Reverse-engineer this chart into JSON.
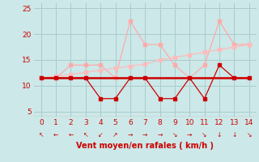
{
  "x": [
    0,
    1,
    2,
    3,
    4,
    5,
    6,
    7,
    8,
    9,
    10,
    11,
    12,
    13,
    14
  ],
  "line_flat": [
    11.5,
    11.5,
    11.5,
    11.5,
    11.5,
    11.5,
    11.5,
    11.5,
    11.5,
    11.5,
    11.5,
    11.5,
    11.5,
    11.5,
    11.5
  ],
  "line_zigzag": [
    11.5,
    11.5,
    11.5,
    11.5,
    7.5,
    7.5,
    11.5,
    11.5,
    7.5,
    7.5,
    11.5,
    7.5,
    14.0,
    11.5,
    11.5
  ],
  "line_upper": [
    11.5,
    11.5,
    14.0,
    14.0,
    14.0,
    11.5,
    22.5,
    18.0,
    18.0,
    14.0,
    11.5,
    14.0,
    22.5,
    18.0,
    18.0
  ],
  "line_trend": [
    11.5,
    11.8,
    12.2,
    12.6,
    13.0,
    13.4,
    13.8,
    14.2,
    15.0,
    15.5,
    16.0,
    16.5,
    17.0,
    17.5,
    18.0
  ],
  "color_dark": "#cc0000",
  "color_light": "#ffaaaa",
  "color_trend": "#ffbbbb",
  "bg_color": "#cce8e8",
  "grid_color": "#aacccc",
  "xlabel": "Vent moyen/en rafales ( km/h )",
  "xlabel_color": "#cc0000",
  "arrow_symbols": [
    "↖",
    "←",
    "←",
    "↖",
    "↙",
    "↗",
    "→",
    "→",
    "→",
    "↘",
    "→",
    "↘",
    "↓",
    "↓",
    "↘"
  ],
  "ylim": [
    4,
    26
  ],
  "xlim": [
    -0.5,
    14.5
  ],
  "yticks": [
    5,
    10,
    15,
    20,
    25
  ],
  "xticks": [
    0,
    1,
    2,
    3,
    4,
    5,
    6,
    7,
    8,
    9,
    10,
    11,
    12,
    13,
    14
  ]
}
